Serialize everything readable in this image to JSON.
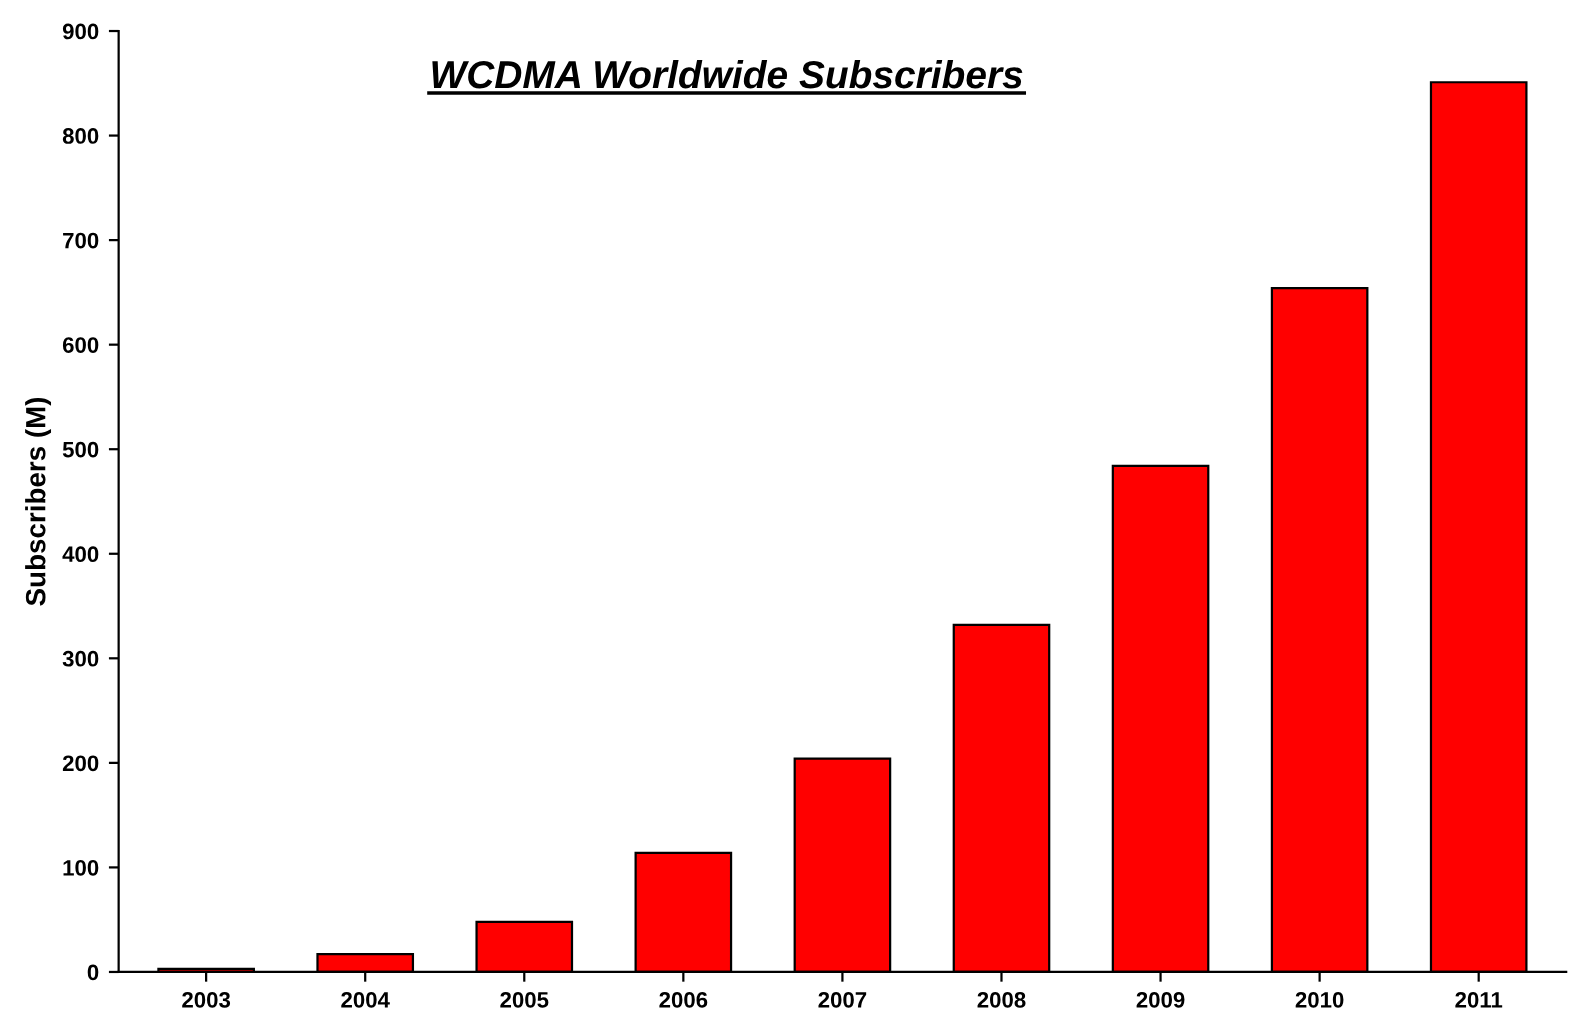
{
  "chart_data": {
    "type": "bar",
    "title": "WCDMA Worldwide Subscribers",
    "ylabel": "Subscribers (M)",
    "categories": [
      "2003",
      "2004",
      "2005",
      "2006",
      "2007",
      "2008",
      "2009",
      "2010",
      "2011"
    ],
    "values": [
      3,
      17,
      48,
      114,
      204,
      332,
      484,
      654,
      851
    ],
    "color": "#ff0000",
    "ylim": [
      0,
      900
    ],
    "yticks": [
      0,
      100,
      200,
      300,
      400,
      500,
      600,
      700,
      800,
      900
    ],
    "grid": false,
    "legend": false
  }
}
